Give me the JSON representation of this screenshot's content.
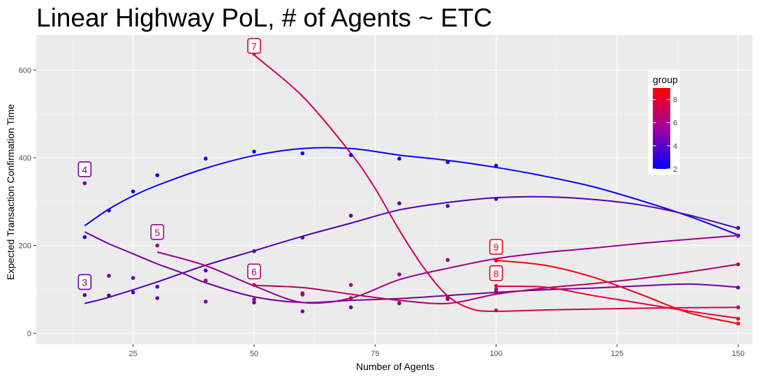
{
  "chart_data": {
    "type": "line",
    "title": "Linear Highway PoL, # of Agents ~ ETC",
    "xlabel": "Number of Agents",
    "ylabel": "Expected Transaction Confirmation Time",
    "xlim": [
      5,
      153
    ],
    "ylim": [
      -25,
      680
    ],
    "x_ticks": [
      25,
      50,
      75,
      100,
      125,
      150
    ],
    "y_ticks": [
      0,
      200,
      400,
      600
    ],
    "grid": true,
    "legend": {
      "title": "group",
      "position": "right",
      "min": 2,
      "max": 9,
      "ticks": [
        2,
        4,
        6,
        8
      ],
      "color_low": "#0000ff",
      "color_high": "#ff0000"
    },
    "series": [
      {
        "group": 2,
        "color": "#0b00f4",
        "points": [
          [
            15,
            219
          ],
          [
            20,
            280
          ],
          [
            25,
            323
          ],
          [
            30,
            360
          ],
          [
            40,
            398
          ],
          [
            50,
            414
          ],
          [
            60,
            410
          ],
          [
            70,
            406
          ],
          [
            80,
            398
          ],
          [
            90,
            390
          ],
          [
            100,
            382
          ],
          [
            150,
            222
          ]
        ],
        "smooth": [
          [
            15,
            245
          ],
          [
            20,
            283
          ],
          [
            25,
            313
          ],
          [
            30,
            337
          ],
          [
            40,
            376
          ],
          [
            50,
            405
          ],
          [
            60,
            421
          ],
          [
            70,
            421
          ],
          [
            80,
            406
          ],
          [
            90,
            394
          ],
          [
            100,
            378
          ],
          [
            110,
            358
          ],
          [
            120,
            334
          ],
          [
            130,
            302
          ],
          [
            140,
            266
          ],
          [
            150,
            224
          ]
        ]
      },
      {
        "group": 3,
        "color": "#5000af",
        "points": [
          [
            15,
            87
          ],
          [
            20,
            86
          ],
          [
            25,
            93
          ],
          [
            30,
            106
          ],
          [
            40,
            143
          ],
          [
            50,
            187
          ],
          [
            60,
            218
          ],
          [
            70,
            268
          ],
          [
            80,
            296
          ],
          [
            90,
            290
          ],
          [
            100,
            306
          ],
          [
            150,
            240
          ]
        ],
        "smooth": [
          [
            15,
            68
          ],
          [
            20,
            82
          ],
          [
            30,
            117
          ],
          [
            40,
            155
          ],
          [
            50,
            188
          ],
          [
            60,
            221
          ],
          [
            70,
            251
          ],
          [
            80,
            281
          ],
          [
            90,
            298
          ],
          [
            100,
            309
          ],
          [
            110,
            311
          ],
          [
            120,
            305
          ],
          [
            130,
            292
          ],
          [
            140,
            269
          ],
          [
            150,
            239
          ]
        ]
      },
      {
        "group": 4,
        "color": "#7000a0",
        "points": [
          [
            15,
            342
          ],
          [
            20,
            131
          ],
          [
            25,
            126
          ],
          [
            30,
            80
          ],
          [
            40,
            72
          ],
          [
            50,
            70
          ],
          [
            60,
            50
          ],
          [
            70,
            59
          ],
          [
            80,
            68
          ],
          [
            90,
            78
          ],
          [
            100,
            94
          ],
          [
            150,
            104
          ]
        ],
        "smooth": [
          [
            15,
            231
          ],
          [
            20,
            204
          ],
          [
            25,
            181
          ],
          [
            30,
            158
          ],
          [
            35,
            138
          ],
          [
            40,
            115
          ],
          [
            50,
            83
          ],
          [
            60,
            70
          ],
          [
            70,
            75
          ],
          [
            80,
            79
          ],
          [
            90,
            86
          ],
          [
            100,
            93
          ],
          [
            110,
            99
          ],
          [
            120,
            103
          ],
          [
            130,
            108
          ],
          [
            140,
            112
          ],
          [
            150,
            105
          ]
        ]
      },
      {
        "group": 5,
        "color": "#9b008e",
        "points": [
          [
            30,
            200
          ],
          [
            40,
            120
          ],
          [
            50,
            77
          ],
          [
            60,
            88
          ],
          [
            70,
            110
          ],
          [
            80,
            134
          ],
          [
            90,
            167
          ],
          [
            100,
            166
          ],
          [
            150,
            223
          ]
        ],
        "smooth": [
          [
            30,
            185
          ],
          [
            40,
            154
          ],
          [
            50,
            108
          ],
          [
            60,
            70
          ],
          [
            70,
            80
          ],
          [
            80,
            122
          ],
          [
            90,
            148
          ],
          [
            100,
            170
          ],
          [
            110,
            184
          ],
          [
            120,
            194
          ],
          [
            130,
            205
          ],
          [
            140,
            214
          ],
          [
            150,
            223
          ]
        ]
      },
      {
        "group": 6,
        "color": "#b40060",
        "points": [
          [
            50,
            110
          ],
          [
            60,
            91
          ],
          [
            70,
            80
          ],
          [
            80,
            69
          ],
          [
            90,
            82
          ],
          [
            100,
            100
          ],
          [
            150,
            157
          ]
        ],
        "smooth": [
          [
            50,
            109
          ],
          [
            60,
            104
          ],
          [
            70,
            89
          ],
          [
            80,
            75
          ],
          [
            90,
            68
          ],
          [
            100,
            89
          ],
          [
            110,
            103
          ],
          [
            120,
            113
          ],
          [
            130,
            125
          ],
          [
            140,
            140
          ],
          [
            150,
            157
          ]
        ]
      },
      {
        "group": 7,
        "color": "#d1005a",
        "points": [
          [
            50,
            637
          ],
          [
            100,
            52
          ],
          [
            150,
            59
          ]
        ],
        "smooth": [
          [
            50,
            634
          ],
          [
            60,
            540
          ],
          [
            70,
            410
          ],
          [
            75,
            330
          ],
          [
            80,
            235
          ],
          [
            85,
            150
          ],
          [
            90,
            85
          ],
          [
            95,
            55
          ],
          [
            100,
            50
          ],
          [
            110,
            53
          ],
          [
            120,
            55
          ],
          [
            130,
            57
          ],
          [
            140,
            58
          ],
          [
            150,
            59
          ]
        ]
      },
      {
        "group": 8,
        "color": "#e8003a",
        "points": [
          [
            100,
            108
          ],
          [
            150,
            33
          ]
        ],
        "smooth": [
          [
            100,
            107
          ],
          [
            110,
            105
          ],
          [
            120,
            86
          ],
          [
            130,
            68
          ],
          [
            140,
            50
          ],
          [
            150,
            34
          ]
        ]
      },
      {
        "group": 9,
        "color": "#fa0010",
        "points": [
          [
            100,
            166
          ],
          [
            150,
            22
          ]
        ],
        "smooth": [
          [
            100,
            166
          ],
          [
            110,
            155
          ],
          [
            120,
            128
          ],
          [
            130,
            88
          ],
          [
            140,
            46
          ],
          [
            150,
            22
          ]
        ]
      }
    ],
    "labels": [
      {
        "text": "3",
        "x": 15,
        "y": 116,
        "color": "#6000a8"
      },
      {
        "text": "4",
        "x": 15,
        "y": 373,
        "color": "#7d0098"
      },
      {
        "text": "5",
        "x": 30,
        "y": 230,
        "color": "#a0008a"
      },
      {
        "text": "6",
        "x": 50,
        "y": 140,
        "color": "#b8006a"
      },
      {
        "text": "7",
        "x": 50,
        "y": 654,
        "color": "#d10050"
      },
      {
        "text": "8",
        "x": 100,
        "y": 136,
        "color": "#e20030"
      },
      {
        "text": "9",
        "x": 100,
        "y": 196,
        "color": "#f00010"
      }
    ]
  }
}
